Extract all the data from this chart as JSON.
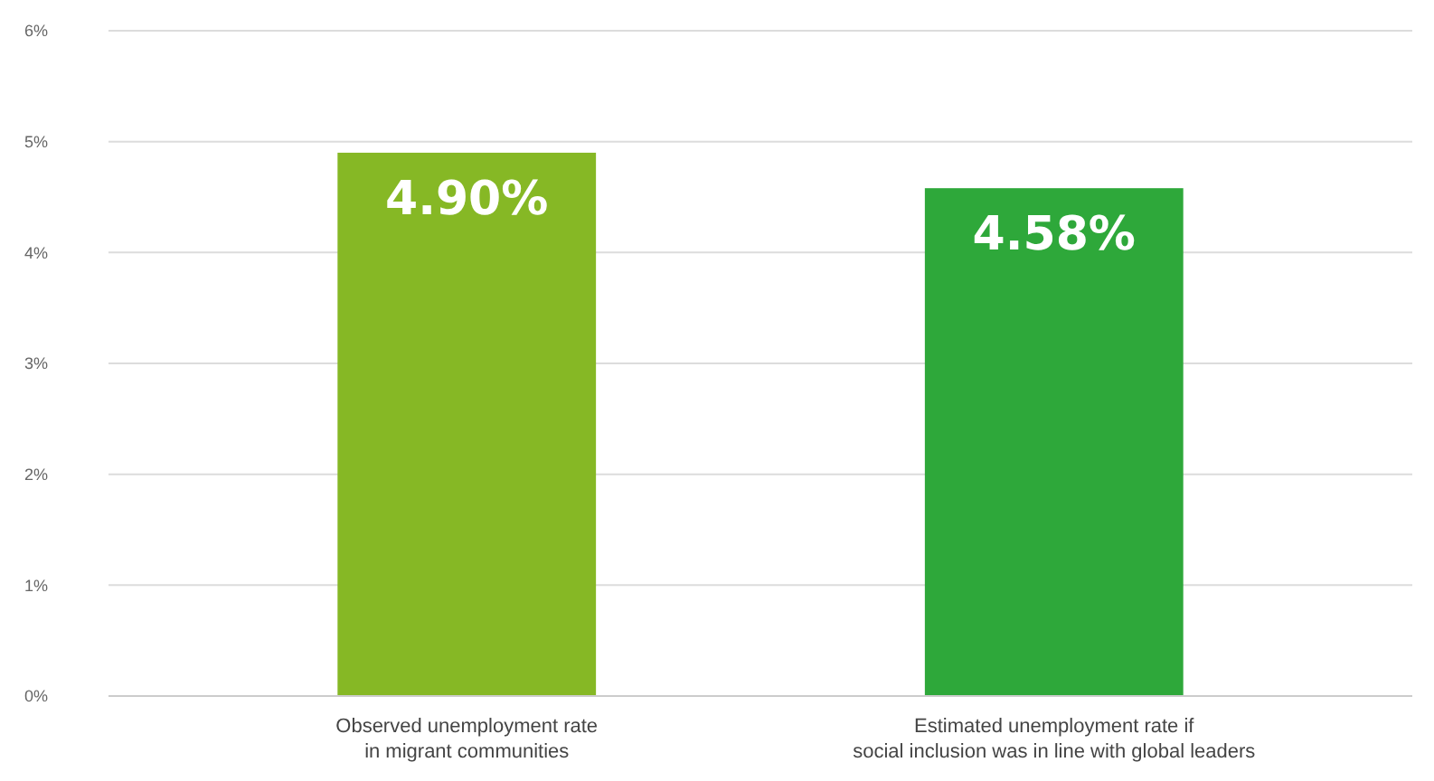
{
  "chart_data": {
    "type": "bar",
    "categories": [
      "Observed unemployment rate\nin migrant communities",
      "Estimated unemployment rate if\nsocial inclusion was in line with global leaders"
    ],
    "values": [
      4.9,
      4.58
    ],
    "value_labels": [
      "4.90%",
      "4.58%"
    ],
    "colors": [
      "#86b825",
      "#2ea83a"
    ],
    "ylim": [
      0,
      6
    ],
    "yticks": [
      {
        "value": 0,
        "label": "0%"
      },
      {
        "value": 1,
        "label": "1%"
      },
      {
        "value": 2,
        "label": "2%"
      },
      {
        "value": 3,
        "label": "3%"
      },
      {
        "value": 4,
        "label": "4%"
      },
      {
        "value": 5,
        "label": "5%"
      },
      {
        "value": 6,
        "label": "6%"
      }
    ],
    "grid": "y"
  }
}
